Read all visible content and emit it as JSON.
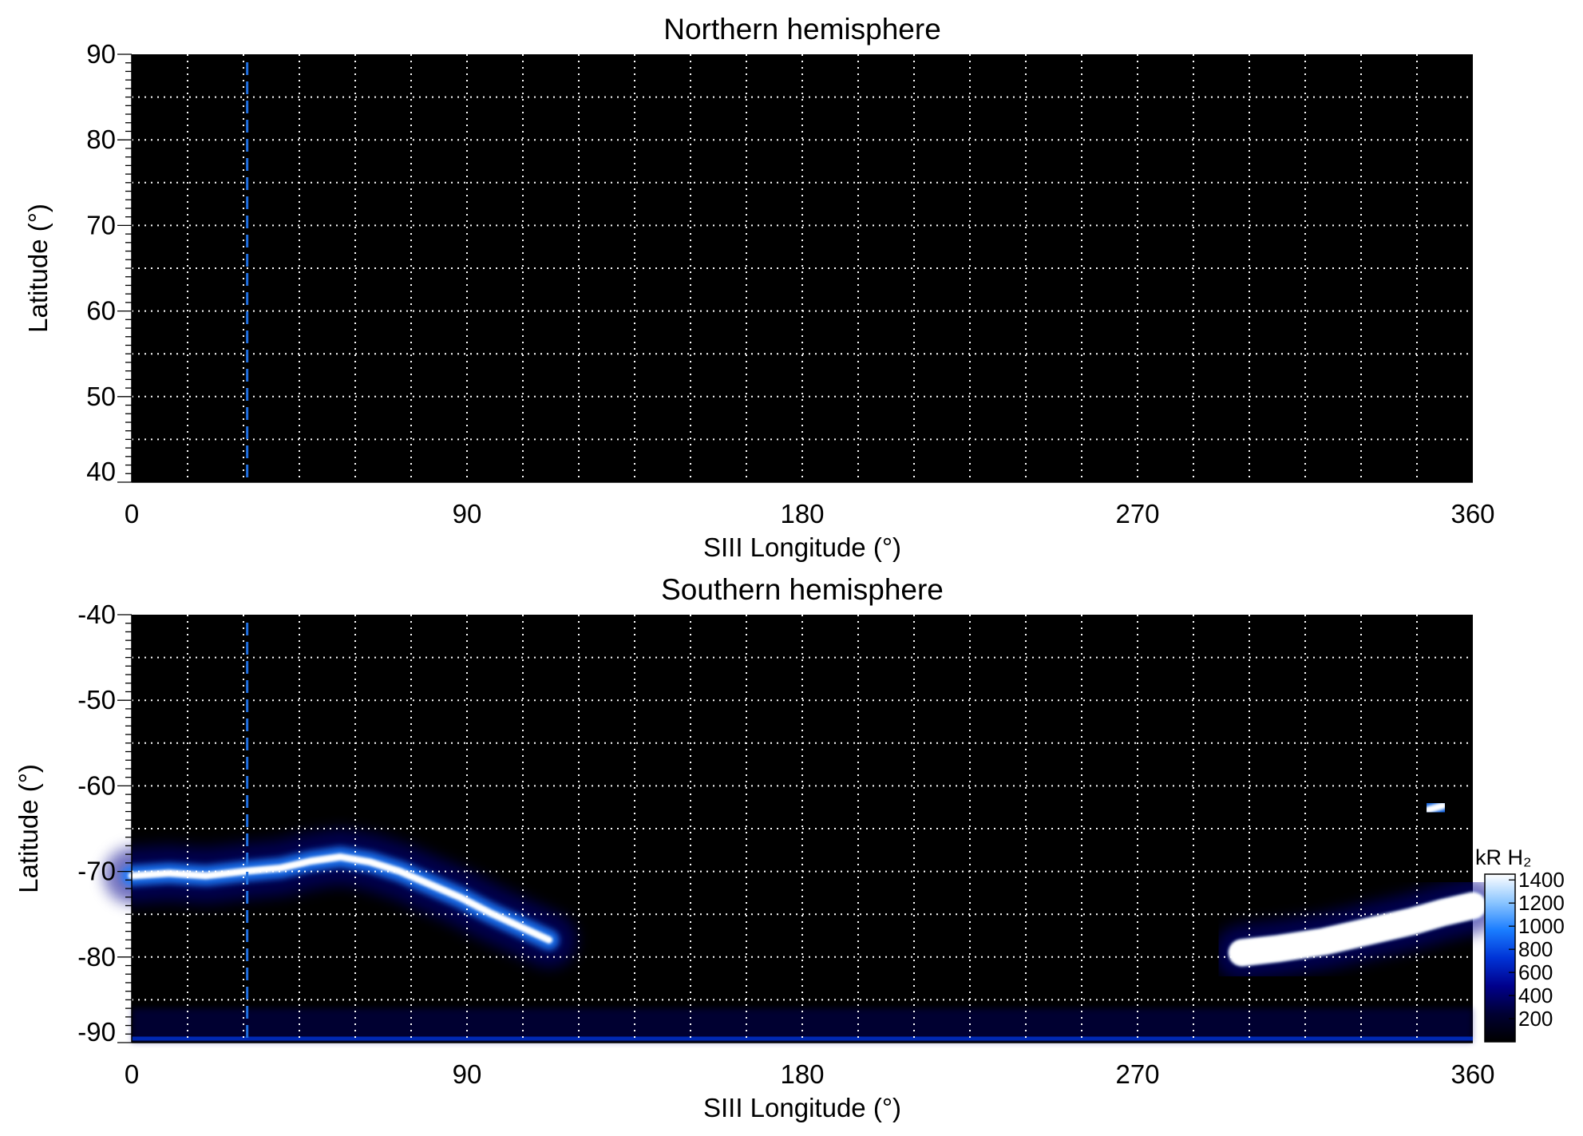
{
  "colorbar": {
    "title": "kR H₂",
    "ticks": [
      200,
      400,
      600,
      800,
      1000,
      1200,
      1400
    ],
    "range": [
      0,
      1450
    ],
    "colors": [
      "#000000",
      "#000033",
      "#00008c",
      "#0033d6",
      "#1a7dff",
      "#8cc6ff",
      "#ffffff"
    ]
  },
  "chart_data": [
    {
      "type": "heatmap",
      "title": "Northern hemisphere",
      "xlabel": "SIII Longitude (°)",
      "ylabel": "Latitude (°)",
      "xlim": [
        0,
        360
      ],
      "ylim": [
        40,
        90
      ],
      "xticks": [
        0,
        90,
        180,
        270,
        360
      ],
      "yticks": [
        40,
        50,
        60,
        70,
        80,
        90
      ],
      "grid": true,
      "grid_x_step": 15,
      "grid_y_step": 5,
      "reference_line_longitude": 31,
      "emission": []
    },
    {
      "type": "heatmap",
      "title": "Southern hemisphere",
      "xlabel": "SIII Longitude (°)",
      "ylabel": "Latitude (°)",
      "xlim": [
        0,
        360
      ],
      "ylim": [
        -90,
        -40
      ],
      "xticks": [
        0,
        90,
        180,
        270,
        360
      ],
      "yticks": [
        -40,
        -50,
        -60,
        -70,
        -80,
        -90
      ],
      "grid": true,
      "grid_x_step": 15,
      "grid_y_step": 5,
      "reference_line_longitude": 31,
      "emission": [
        {
          "feature": "main-oval-west",
          "points": [
            [
              0,
              -70.5
            ],
            [
              10,
              -70.2
            ],
            [
              20,
              -70.5
            ],
            [
              30,
              -70.0
            ],
            [
              40,
              -69.6
            ],
            [
              48,
              -68.8
            ],
            [
              56,
              -68.3
            ],
            [
              64,
              -68.9
            ],
            [
              72,
              -70.0
            ],
            [
              80,
              -71.5
            ],
            [
              88,
              -73.0
            ],
            [
              96,
              -74.8
            ],
            [
              104,
              -76.4
            ],
            [
              112,
              -78.0
            ]
          ],
          "intensity_kR": 1300
        },
        {
          "feature": "main-oval-east",
          "points": [
            [
              298,
              -79.5
            ],
            [
              308,
              -79.0
            ],
            [
              320,
              -78.2
            ],
            [
              332,
              -77.0
            ],
            [
              344,
              -75.8
            ],
            [
              352,
              -74.8
            ],
            [
              360,
              -74.0
            ]
          ],
          "intensity_kR": 1450
        },
        {
          "feature": "east-spot",
          "points": [
            [
              348,
              -62.8
            ],
            [
              352,
              -62.3
            ]
          ],
          "intensity_kR": 1200
        }
      ]
    }
  ]
}
